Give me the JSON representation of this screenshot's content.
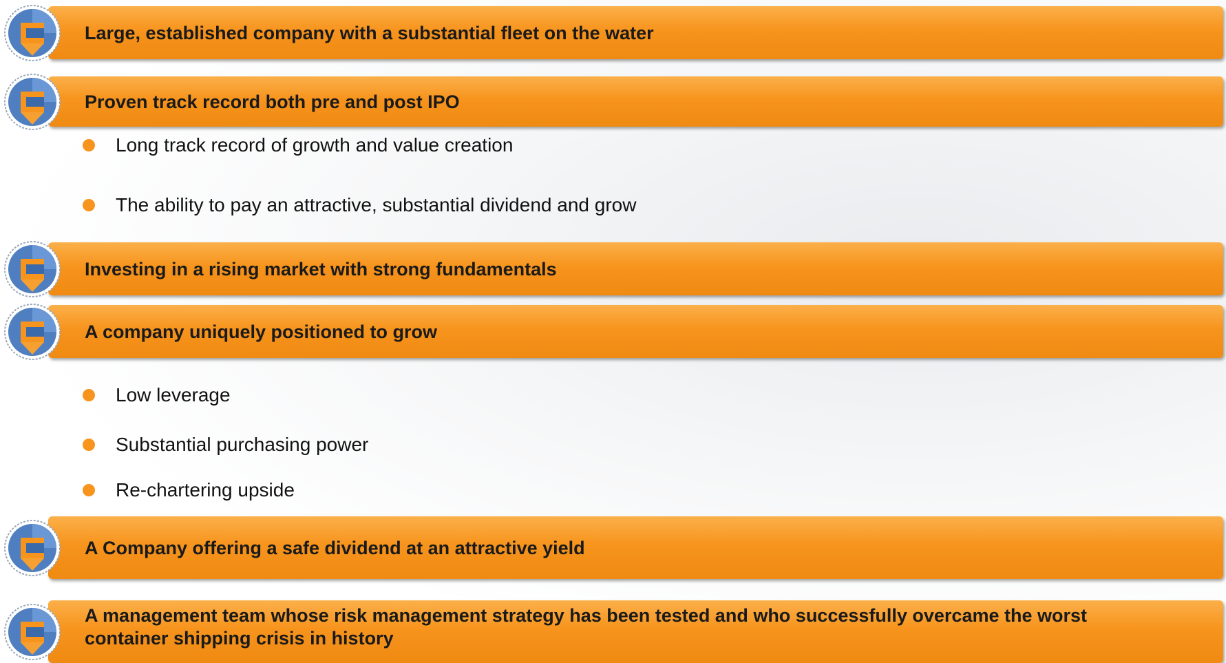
{
  "sections": [
    {
      "heading": "Large, established company with a substantial fleet on the water",
      "bullets": []
    },
    {
      "heading": "Proven track record both pre and post IPO",
      "bullets": [
        "Long track record of growth and value creation",
        "The ability to pay an attractive, substantial dividend and grow"
      ]
    },
    {
      "heading": "Investing in a rising market with strong fundamentals",
      "bullets": []
    },
    {
      "heading": "A company uniquely positioned to grow",
      "bullets": [
        "Low leverage",
        "Substantial purchasing power",
        "Re-chartering upside"
      ]
    },
    {
      "heading": "A Company offering a safe dividend at an attractive yield",
      "bullets": []
    },
    {
      "heading": "A management team whose risk management strategy has been tested and who successfully overcame the worst container shipping crisis in history",
      "bullets": []
    }
  ]
}
